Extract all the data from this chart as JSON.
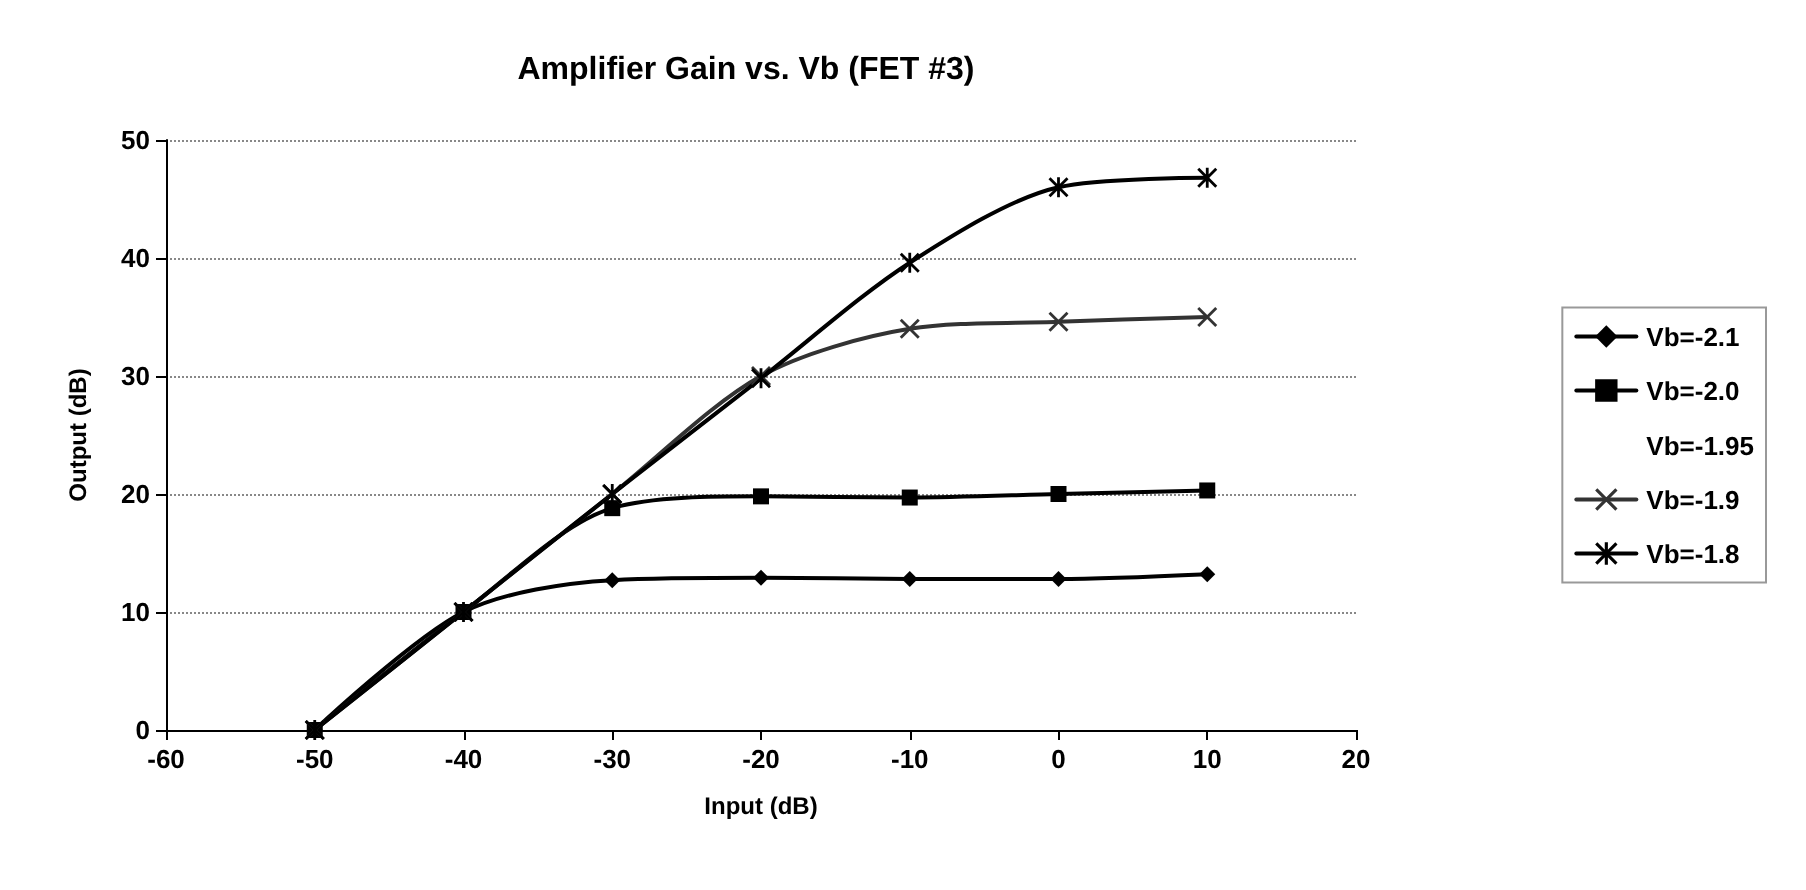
{
  "chart_data": {
    "type": "line",
    "title": "Amplifier Gain vs. Vb (FET #3)",
    "xlabel": "Input (dB)",
    "ylabel": "Output (dB)",
    "x": [
      -50,
      -40,
      -30,
      -20,
      -10,
      0,
      10
    ],
    "xlim": [
      -60,
      20
    ],
    "xticks": [
      -60,
      -50,
      -40,
      -30,
      -20,
      -10,
      0,
      10,
      20
    ],
    "ylim": [
      0,
      50
    ],
    "yticks": [
      0,
      10,
      20,
      30,
      40,
      50
    ],
    "grid": "y",
    "legend": "right",
    "series": [
      {
        "name": "Vb=-2.1",
        "color": "#000000",
        "marker": "diamond",
        "values": [
          0,
          10,
          12.7,
          12.9,
          12.8,
          12.8,
          13.2
        ]
      },
      {
        "name": "Vb=-2.0",
        "color": "#000000",
        "marker": "square",
        "values": [
          0,
          10,
          18.8,
          19.8,
          19.7,
          20,
          20.3
        ]
      },
      {
        "name": "Vb=-1.95",
        "values": [
          null,
          null,
          null,
          null,
          null,
          null,
          null
        ]
      },
      {
        "name": "Vb=-1.9",
        "color": "#333333",
        "marker": "cross",
        "values": [
          0,
          10,
          20,
          30,
          34,
          34.6,
          35
        ]
      },
      {
        "name": "Vb=-1.8",
        "color": "#000000",
        "marker": "star",
        "values": [
          0,
          10,
          20,
          29.8,
          39.6,
          46,
          46.8
        ]
      }
    ]
  }
}
